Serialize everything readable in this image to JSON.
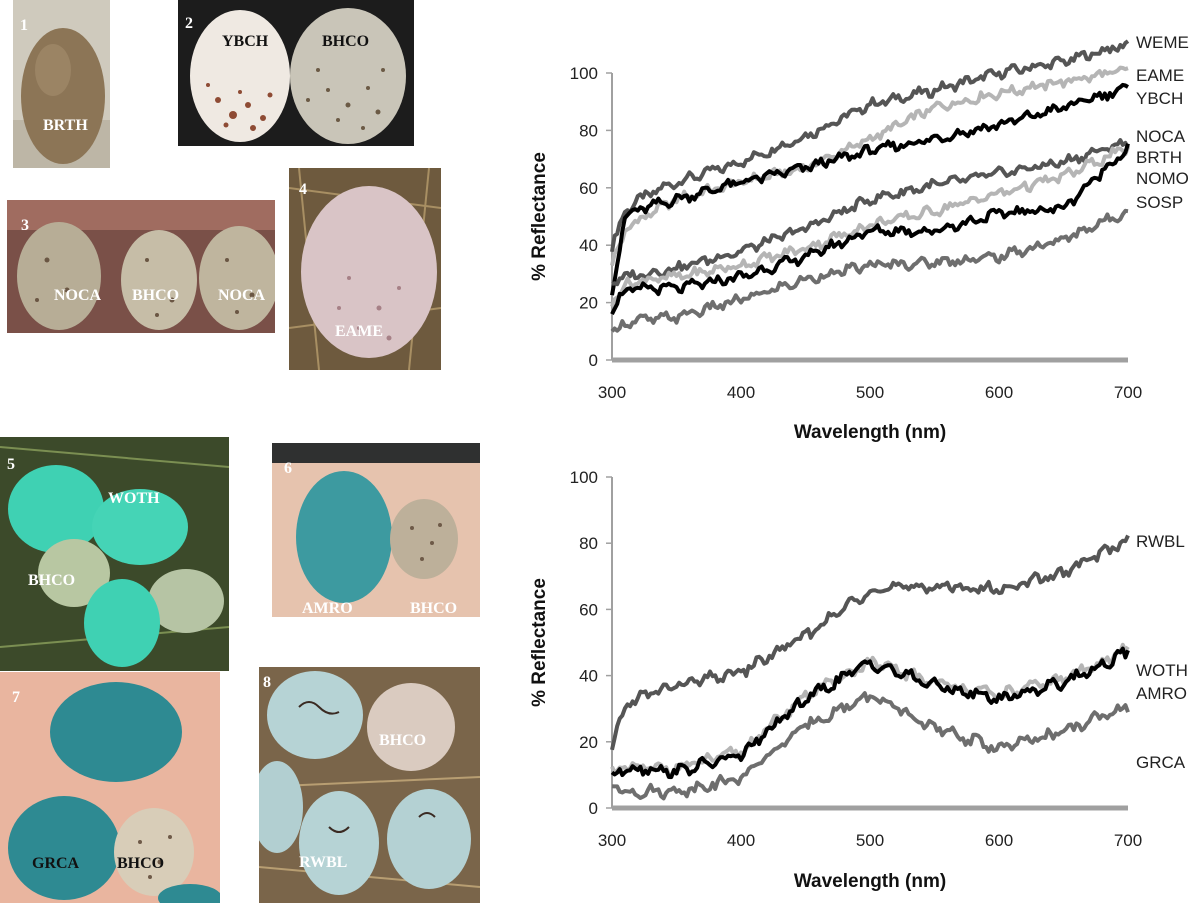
{
  "photos": [
    {
      "number": "1",
      "labels": [
        "BRTH"
      ]
    },
    {
      "number": "2",
      "labels": [
        "YBCH",
        "BHCO"
      ]
    },
    {
      "number": "3",
      "labels": [
        "NOCA",
        "BHCO",
        "NOCA"
      ]
    },
    {
      "number": "4",
      "labels": [
        "EAME"
      ]
    },
    {
      "number": "5",
      "labels": [
        "WOTH",
        "BHCO"
      ]
    },
    {
      "number": "6",
      "labels": [
        "AMRO",
        "BHCO"
      ]
    },
    {
      "number": "7",
      "labels": [
        "GRCA",
        "BHCO"
      ]
    },
    {
      "number": "8",
      "labels": [
        "BHCO",
        "RWBL"
      ]
    }
  ],
  "colors": {
    "dark_gray": "#555555",
    "light_gray": "#b5b5b5",
    "black": "#000000",
    "mid_gray": "#6e6e6e",
    "axis": "#a0a0a0"
  },
  "chart_data": [
    {
      "type": "line",
      "xlabel": "Wavelength (nm)",
      "ylabel": "% Reflectance",
      "xlim": [
        300,
        700
      ],
      "ylim": [
        0,
        100
      ],
      "x_ticks": [
        "300",
        "400",
        "500",
        "600",
        "700"
      ],
      "y_ticks": [
        "0",
        "20",
        "40",
        "60",
        "80",
        "100"
      ],
      "series": [
        {
          "name": "WEME",
          "color": "#555555",
          "x": [
            300,
            310,
            325,
            350,
            400,
            450,
            500,
            550,
            600,
            650,
            700
          ],
          "values": [
            39,
            52,
            57,
            62,
            69,
            78,
            89,
            94,
            100,
            104,
            110
          ]
        },
        {
          "name": "EAME",
          "color": "#b5b5b5",
          "x": [
            300,
            310,
            325,
            350,
            400,
            450,
            500,
            550,
            600,
            650,
            700
          ],
          "values": [
            33,
            45,
            50,
            56,
            62,
            67,
            77,
            88,
            93,
            97,
            101
          ]
        },
        {
          "name": "YBCH",
          "color": "#000000",
          "x": [
            300,
            310,
            325,
            350,
            400,
            450,
            500,
            550,
            600,
            650,
            700
          ],
          "values": [
            23,
            50,
            53,
            56,
            62,
            67,
            73,
            77,
            82,
            88,
            95
          ]
        },
        {
          "name": "NOCA",
          "color": "#555555",
          "x": [
            300,
            310,
            325,
            350,
            400,
            450,
            500,
            550,
            600,
            650,
            700
          ],
          "values": [
            27,
            29,
            30,
            32,
            38,
            46,
            56,
            61,
            65,
            69,
            76
          ]
        },
        {
          "name": "BRTH",
          "color": "#b5b5b5",
          "x": [
            300,
            310,
            325,
            350,
            400,
            450,
            500,
            550,
            600,
            650,
            700
          ],
          "values": [
            20,
            26,
            28,
            29,
            33,
            39,
            47,
            52,
            58,
            64,
            74
          ]
        },
        {
          "name": "NOMO",
          "color": "#000000",
          "x": [
            300,
            310,
            325,
            350,
            400,
            450,
            500,
            550,
            600,
            650,
            700
          ],
          "values": [
            18,
            24,
            25,
            25,
            29,
            36,
            45,
            45,
            51,
            53,
            74
          ]
        },
        {
          "name": "SOSP",
          "color": "#6e6e6e",
          "x": [
            300,
            310,
            325,
            350,
            400,
            450,
            500,
            550,
            600,
            650,
            700
          ],
          "values": [
            9,
            13,
            14,
            15,
            21,
            28,
            33,
            34,
            36,
            42,
            52
          ]
        }
      ],
      "series_labels": [
        "WEME",
        "EAME",
        "YBCH",
        "NOCA",
        "BRTH",
        "NOMO",
        "SOSP"
      ]
    },
    {
      "type": "line",
      "xlabel": "Wavelength (nm)",
      "ylabel": "% Reflectance",
      "xlim": [
        300,
        700
      ],
      "ylim": [
        0,
        100
      ],
      "x_ticks": [
        "300",
        "400",
        "500",
        "600",
        "700"
      ],
      "y_ticks": [
        "0",
        "20",
        "40",
        "60",
        "80",
        "100"
      ],
      "series": [
        {
          "name": "RWBL",
          "color": "#555555",
          "x": [
            300,
            310,
            325,
            350,
            400,
            450,
            500,
            550,
            600,
            650,
            700
          ],
          "values": [
            17,
            31,
            34,
            37,
            41,
            52,
            66,
            67,
            66,
            71,
            81
          ]
        },
        {
          "name": "WOTH",
          "color": "#b5b5b5",
          "x": [
            300,
            310,
            325,
            350,
            400,
            450,
            500,
            550,
            600,
            650,
            700
          ],
          "values": [
            11,
            12,
            12,
            12,
            17,
            34,
            44,
            38,
            34,
            39,
            48
          ]
        },
        {
          "name": "AMRO",
          "color": "#000000",
          "x": [
            300,
            310,
            325,
            350,
            400,
            450,
            500,
            550,
            600,
            650,
            700
          ],
          "values": [
            10,
            12,
            12,
            11,
            16,
            33,
            44,
            37,
            33,
            38,
            47
          ]
        },
        {
          "name": "GRCA",
          "color": "#6e6e6e",
          "x": [
            300,
            310,
            325,
            350,
            400,
            450,
            500,
            550,
            600,
            650,
            700
          ],
          "values": [
            7,
            5,
            5,
            5,
            9,
            25,
            34,
            24,
            18,
            23,
            31
          ]
        }
      ],
      "series_labels": [
        "RWBL",
        "WOTH",
        "AMRO",
        "GRCA"
      ]
    }
  ]
}
